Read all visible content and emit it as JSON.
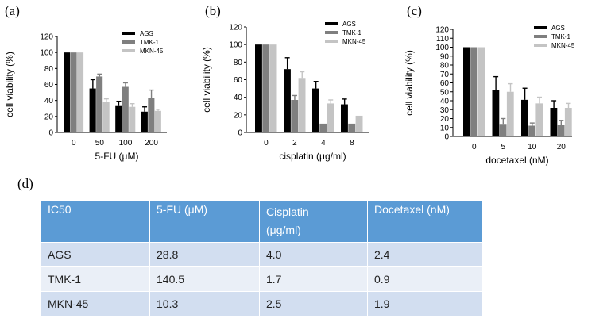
{
  "panel_labels": {
    "a": "(a)",
    "b": "(b)",
    "c": "(c)",
    "d": "(d)"
  },
  "colors": {
    "AGS": "#000000",
    "TMK-1": "#7f7f7f",
    "MKN-45": "#c4c4c4",
    "table_header": "#5b9bd5",
    "row_odd": "#d2def0",
    "row_even": "#eaeff7"
  },
  "chart_data": [
    {
      "type": "bar",
      "title": "",
      "xlabel": "5-FU (μM)",
      "ylabel": "cell viability (%)",
      "ylim": [
        0,
        120
      ],
      "yticks": [
        "0",
        "20",
        "40",
        "60",
        "80",
        "100",
        "120"
      ],
      "categories": [
        "0",
        "50",
        "100",
        "200"
      ],
      "series": [
        {
          "name": "AGS",
          "values": [
            100,
            55,
            33,
            26
          ],
          "errors": [
            0,
            11,
            6,
            6
          ]
        },
        {
          "name": "TMK-1",
          "values": [
            100,
            70,
            57,
            43
          ],
          "errors": [
            0,
            3,
            5,
            10
          ]
        },
        {
          "name": "MKN-45",
          "values": [
            100,
            38,
            32,
            27
          ],
          "errors": [
            0,
            4,
            4,
            2
          ]
        }
      ],
      "legend": [
        "AGS",
        "TMK-1",
        "MKN-45"
      ],
      "legend_position": "top-right"
    },
    {
      "type": "bar",
      "title": "",
      "xlabel": "cisplatin (μg/ml)",
      "ylabel": "cell viability (%)",
      "ylim": [
        0,
        120
      ],
      "yticks": [
        "0",
        "20",
        "40",
        "60",
        "80",
        "100",
        "120"
      ],
      "categories": [
        "0",
        "2",
        "4",
        "8"
      ],
      "series": [
        {
          "name": "AGS",
          "values": [
            100,
            72,
            50,
            32
          ],
          "errors": [
            0,
            13,
            8,
            6
          ]
        },
        {
          "name": "TMK-1",
          "values": [
            100,
            37,
            10,
            10
          ],
          "errors": [
            0,
            5,
            0,
            0
          ]
        },
        {
          "name": "MKN-45",
          "values": [
            100,
            62,
            33,
            19
          ],
          "errors": [
            0,
            7,
            4,
            0
          ]
        }
      ],
      "legend": [
        "AGS",
        "TMK-1",
        "MKN-45"
      ],
      "legend_position": "top-right"
    },
    {
      "type": "bar",
      "title": "",
      "xlabel": "docetaxel (nM)",
      "ylabel": "cell viability (%)",
      "ylim": [
        0,
        120
      ],
      "yticks": [
        "0",
        "10",
        "20",
        "30",
        "40",
        "50",
        "60",
        "70",
        "80",
        "90",
        "100",
        "110",
        "120"
      ],
      "categories": [
        "0",
        "5",
        "10",
        "20"
      ],
      "series": [
        {
          "name": "AGS",
          "values": [
            100,
            52,
            41,
            32
          ],
          "errors": [
            0,
            15,
            13,
            8
          ]
        },
        {
          "name": "TMK-1",
          "values": [
            100,
            14,
            12,
            13
          ],
          "errors": [
            0,
            6,
            3,
            5
          ]
        },
        {
          "name": "MKN-45",
          "values": [
            100,
            50,
            37,
            32
          ],
          "errors": [
            0,
            9,
            7,
            5
          ]
        }
      ],
      "legend": [
        "AGS",
        "TMK-1",
        "MKN-45"
      ],
      "legend_position": "top-right"
    },
    {
      "type": "table",
      "columns": [
        "IC50",
        "5-FU (μM)",
        "Cisplatin (μg/ml)",
        "Docetaxel (nM)"
      ],
      "rows": [
        [
          "AGS",
          "28.8",
          "4.0",
          "2.4"
        ],
        [
          "TMK-1",
          "140.5",
          "1.7",
          "0.9"
        ],
        [
          "MKN-45",
          "10.3",
          "2.5",
          "1.9"
        ]
      ]
    }
  ]
}
